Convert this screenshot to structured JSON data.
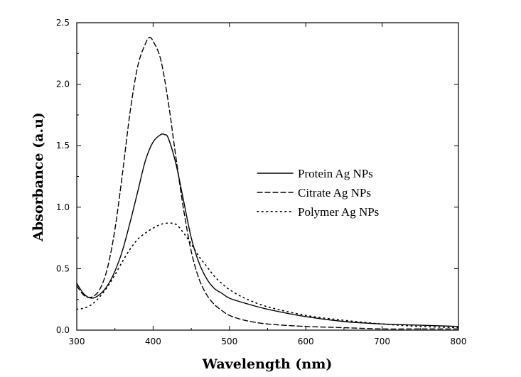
{
  "chart_data": {
    "type": "line",
    "title": "",
    "xlabel": "Wavelength (nm)",
    "ylabel": "Absorbance (a.u)",
    "xlim": [
      300,
      800
    ],
    "ylim": [
      0.0,
      2.5
    ],
    "x_ticks": [
      "300",
      "400",
      "500",
      "600",
      "700",
      "800"
    ],
    "y_ticks": [
      "0.0",
      "0.5",
      "1.0",
      "1.5",
      "2.0",
      "2.5"
    ],
    "grid": false,
    "legend_position": "center-right",
    "series": [
      {
        "name": "Protein Ag NPs",
        "style": "solid",
        "color": "#000000",
        "x": [
          300,
          310,
          320,
          330,
          340,
          350,
          360,
          370,
          380,
          390,
          400,
          410,
          415,
          420,
          430,
          440,
          450,
          460,
          470,
          480,
          490,
          500,
          520,
          550,
          600,
          650,
          700,
          750,
          800
        ],
        "y": [
          0.38,
          0.29,
          0.26,
          0.29,
          0.36,
          0.48,
          0.65,
          0.88,
          1.13,
          1.38,
          1.53,
          1.59,
          1.59,
          1.56,
          1.35,
          1.05,
          0.75,
          0.55,
          0.42,
          0.34,
          0.3,
          0.26,
          0.22,
          0.17,
          0.11,
          0.07,
          0.05,
          0.04,
          0.03
        ]
      },
      {
        "name": "Citrate Ag NPs",
        "style": "dashed",
        "color": "#000000",
        "x": [
          300,
          310,
          320,
          330,
          340,
          350,
          360,
          370,
          380,
          390,
          395,
          400,
          410,
          420,
          430,
          440,
          450,
          460,
          470,
          480,
          490,
          500,
          520,
          550,
          600,
          650,
          700,
          750,
          800
        ],
        "y": [
          0.36,
          0.28,
          0.27,
          0.33,
          0.5,
          0.82,
          1.28,
          1.78,
          2.15,
          2.33,
          2.38,
          2.35,
          2.2,
          1.85,
          1.4,
          0.98,
          0.64,
          0.42,
          0.29,
          0.21,
          0.16,
          0.12,
          0.08,
          0.05,
          0.03,
          0.02,
          0.01,
          0.01,
          0.01
        ]
      },
      {
        "name": "Polymer Ag NPs",
        "style": "dotted",
        "color": "#000000",
        "x": [
          300,
          310,
          320,
          330,
          340,
          350,
          360,
          370,
          380,
          390,
          400,
          410,
          420,
          430,
          440,
          450,
          460,
          470,
          480,
          490,
          500,
          520,
          550,
          600,
          650,
          700,
          750,
          800
        ],
        "y": [
          0.17,
          0.18,
          0.21,
          0.27,
          0.35,
          0.45,
          0.56,
          0.66,
          0.74,
          0.79,
          0.83,
          0.86,
          0.87,
          0.86,
          0.79,
          0.7,
          0.6,
          0.52,
          0.44,
          0.38,
          0.33,
          0.26,
          0.19,
          0.12,
          0.08,
          0.05,
          0.03,
          0.02
        ]
      }
    ]
  }
}
